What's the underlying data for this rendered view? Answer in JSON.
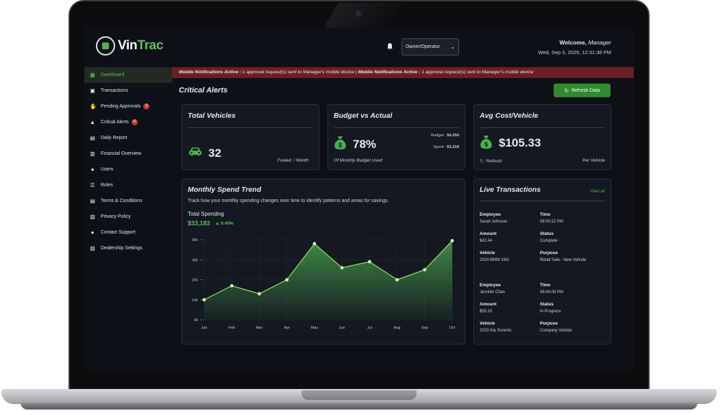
{
  "app": {
    "logo_part1": "Vin",
    "logo_part2": "Trac",
    "role_select": "Owner/Operator",
    "welcome_prefix": "Welcome,",
    "welcome_role": "Manager",
    "datetime": "Wed, Sep 3, 2025, 12:31:36 PM"
  },
  "sidebar": {
    "items": [
      {
        "label": "Dashboard",
        "icon": "grid-icon",
        "glyph": "▦",
        "active": true
      },
      {
        "label": "Transactions",
        "icon": "receipt-icon",
        "glyph": "▣"
      },
      {
        "label": "Pending Approvals",
        "icon": "hand-icon",
        "glyph": "✋",
        "badge": "3"
      },
      {
        "label": "Critical Alerts",
        "icon": "warning-icon",
        "glyph": "▲",
        "badge": "4"
      },
      {
        "label": "Daily Report",
        "icon": "report-icon",
        "glyph": "▤"
      },
      {
        "label": "Financial Overview",
        "icon": "chart-icon",
        "glyph": "▥"
      },
      {
        "label": "Users",
        "icon": "users-icon",
        "glyph": "●"
      },
      {
        "label": "Roles",
        "icon": "list-icon",
        "glyph": "☰"
      },
      {
        "label": "Terms & Conditions",
        "icon": "document-icon",
        "glyph": "▤"
      },
      {
        "label": "Privacy Policy",
        "icon": "lock-icon",
        "glyph": "▧"
      },
      {
        "label": "Contact Support",
        "icon": "support-icon",
        "glyph": "●"
      },
      {
        "label": "Dealership Settings",
        "icon": "settings-icon",
        "glyph": "▨"
      }
    ]
  },
  "banner": {
    "bold": "Mobile Notifications Active :",
    "text": " 1 approval request(s) sent to Manager's mobile device  |  ",
    "bold2": "Mobile Notifications Active :",
    "text2": " 1 approval request(s) sent to Manager's mobile device"
  },
  "page": {
    "title": "Critical Alerts",
    "refresh_label": "Refresh Data"
  },
  "cards": {
    "vehicles": {
      "title": "Total Vehicles",
      "value": "32",
      "note1": "Fueled",
      "note2": "/ Month"
    },
    "budget": {
      "title": "Budget vs Actual",
      "value": "78%",
      "caption": "Of Monthly Budget Used",
      "budget_label": "Budget :",
      "budget_value": "$4,250",
      "spent_label": "Spent :",
      "spent_value": "$3,318",
      "percent_used": 78
    },
    "avgcost": {
      "title": "Avg Cost/Vehicle",
      "value": "$105.33",
      "refresh": "Refresh",
      "per": "Per Vehicle"
    }
  },
  "trend": {
    "title": "Monthly Spend Trend",
    "subtitle": "Track how your monthly spending changes over time to identify patterns and areas for savings.",
    "total_label": "Total Spending",
    "total_value": "$33,183",
    "change": "9.49%"
  },
  "chart_data": {
    "type": "area",
    "categories": [
      "Jan",
      "Feb",
      "Mar",
      "Apr",
      "May",
      "Jun",
      "Jul",
      "Aug",
      "Sep",
      "Oct"
    ],
    "series": [
      {
        "values": [
          10000,
          17000,
          13000,
          20000,
          38000,
          26000,
          29000,
          20000,
          25000,
          39500
        ]
      }
    ],
    "yticks": [
      "0k",
      "10k",
      "20k",
      "40k",
      "60k"
    ],
    "ylim": [
      0,
      40000
    ],
    "grid": true,
    "color": "#9be564"
  },
  "live": {
    "title": "Live Transactions",
    "view_all": "View all",
    "labels": {
      "employee": "Employee",
      "time": "Time",
      "amount": "Amount",
      "status": "Status",
      "vehicle": "Vehicle",
      "purpose": "Purpose"
    },
    "transactions": [
      {
        "employee": "Sarah Johnson",
        "time": "08:00:22 PM",
        "amount": "$42.44",
        "status": "Complete",
        "vehicle": "2024 BMW 330i",
        "purpose": "Retail Sale - New Vehicle"
      },
      {
        "employee": "Jennifer Chen",
        "time": "08:40:05 PM",
        "amount": "$55.20",
        "status": "In Progress",
        "vehicle": "2023 Kia Sorento",
        "purpose": "Company Vehicle"
      }
    ]
  }
}
